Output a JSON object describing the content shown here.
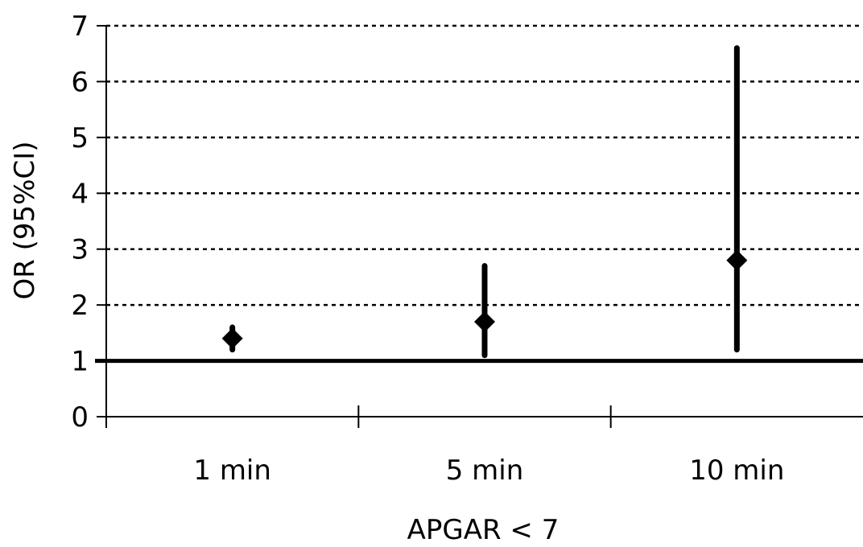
{
  "chart_data": {
    "type": "scatter",
    "title": "",
    "xlabel": "APGAR < 7",
    "ylabel": "OR (95%CI)",
    "categories": [
      "1 min",
      "5 min",
      "10 min"
    ],
    "series": [
      {
        "estimates": [
          1.4,
          1.7,
          2.8
        ],
        "ci_lower": [
          1.2,
          1.1,
          1.2
        ],
        "ci_upper": [
          1.6,
          2.7,
          6.6
        ]
      }
    ],
    "reference_line": 1,
    "ylim": [
      0,
      7
    ],
    "yticks": [
      0,
      1,
      2,
      3,
      4,
      5,
      6,
      7
    ],
    "grid": true,
    "grid_style": "dotted",
    "legend": "none",
    "marker": "diamond",
    "colors": {
      "marks": "#000000",
      "grid": "#000000",
      "background": "#ffffff"
    }
  }
}
